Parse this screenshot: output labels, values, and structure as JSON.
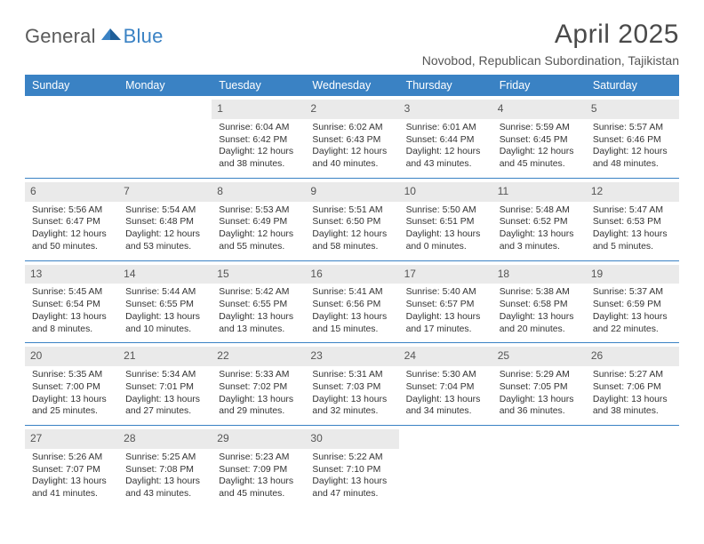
{
  "brand": {
    "word1": "General",
    "word2": "Blue",
    "accent": "#3a82c4",
    "gray": "#5a5a5a"
  },
  "title": "April 2025",
  "subtitle": "Novobod, Republican Subordination, Tajikistan",
  "colors": {
    "header_bg": "#3a82c4",
    "header_fg": "#ffffff",
    "rule": "#3a82c4",
    "daynum_bg": "#eaeaea",
    "text": "#333333"
  },
  "columns": [
    "Sunday",
    "Monday",
    "Tuesday",
    "Wednesday",
    "Thursday",
    "Friday",
    "Saturday"
  ],
  "weeks": [
    [
      null,
      null,
      {
        "n": "1",
        "sr": "Sunrise: 6:04 AM",
        "ss": "Sunset: 6:42 PM",
        "dl": "Daylight: 12 hours and 38 minutes."
      },
      {
        "n": "2",
        "sr": "Sunrise: 6:02 AM",
        "ss": "Sunset: 6:43 PM",
        "dl": "Daylight: 12 hours and 40 minutes."
      },
      {
        "n": "3",
        "sr": "Sunrise: 6:01 AM",
        "ss": "Sunset: 6:44 PM",
        "dl": "Daylight: 12 hours and 43 minutes."
      },
      {
        "n": "4",
        "sr": "Sunrise: 5:59 AM",
        "ss": "Sunset: 6:45 PM",
        "dl": "Daylight: 12 hours and 45 minutes."
      },
      {
        "n": "5",
        "sr": "Sunrise: 5:57 AM",
        "ss": "Sunset: 6:46 PM",
        "dl": "Daylight: 12 hours and 48 minutes."
      }
    ],
    [
      {
        "n": "6",
        "sr": "Sunrise: 5:56 AM",
        "ss": "Sunset: 6:47 PM",
        "dl": "Daylight: 12 hours and 50 minutes."
      },
      {
        "n": "7",
        "sr": "Sunrise: 5:54 AM",
        "ss": "Sunset: 6:48 PM",
        "dl": "Daylight: 12 hours and 53 minutes."
      },
      {
        "n": "8",
        "sr": "Sunrise: 5:53 AM",
        "ss": "Sunset: 6:49 PM",
        "dl": "Daylight: 12 hours and 55 minutes."
      },
      {
        "n": "9",
        "sr": "Sunrise: 5:51 AM",
        "ss": "Sunset: 6:50 PM",
        "dl": "Daylight: 12 hours and 58 minutes."
      },
      {
        "n": "10",
        "sr": "Sunrise: 5:50 AM",
        "ss": "Sunset: 6:51 PM",
        "dl": "Daylight: 13 hours and 0 minutes."
      },
      {
        "n": "11",
        "sr": "Sunrise: 5:48 AM",
        "ss": "Sunset: 6:52 PM",
        "dl": "Daylight: 13 hours and 3 minutes."
      },
      {
        "n": "12",
        "sr": "Sunrise: 5:47 AM",
        "ss": "Sunset: 6:53 PM",
        "dl": "Daylight: 13 hours and 5 minutes."
      }
    ],
    [
      {
        "n": "13",
        "sr": "Sunrise: 5:45 AM",
        "ss": "Sunset: 6:54 PM",
        "dl": "Daylight: 13 hours and 8 minutes."
      },
      {
        "n": "14",
        "sr": "Sunrise: 5:44 AM",
        "ss": "Sunset: 6:55 PM",
        "dl": "Daylight: 13 hours and 10 minutes."
      },
      {
        "n": "15",
        "sr": "Sunrise: 5:42 AM",
        "ss": "Sunset: 6:55 PM",
        "dl": "Daylight: 13 hours and 13 minutes."
      },
      {
        "n": "16",
        "sr": "Sunrise: 5:41 AM",
        "ss": "Sunset: 6:56 PM",
        "dl": "Daylight: 13 hours and 15 minutes."
      },
      {
        "n": "17",
        "sr": "Sunrise: 5:40 AM",
        "ss": "Sunset: 6:57 PM",
        "dl": "Daylight: 13 hours and 17 minutes."
      },
      {
        "n": "18",
        "sr": "Sunrise: 5:38 AM",
        "ss": "Sunset: 6:58 PM",
        "dl": "Daylight: 13 hours and 20 minutes."
      },
      {
        "n": "19",
        "sr": "Sunrise: 5:37 AM",
        "ss": "Sunset: 6:59 PM",
        "dl": "Daylight: 13 hours and 22 minutes."
      }
    ],
    [
      {
        "n": "20",
        "sr": "Sunrise: 5:35 AM",
        "ss": "Sunset: 7:00 PM",
        "dl": "Daylight: 13 hours and 25 minutes."
      },
      {
        "n": "21",
        "sr": "Sunrise: 5:34 AM",
        "ss": "Sunset: 7:01 PM",
        "dl": "Daylight: 13 hours and 27 minutes."
      },
      {
        "n": "22",
        "sr": "Sunrise: 5:33 AM",
        "ss": "Sunset: 7:02 PM",
        "dl": "Daylight: 13 hours and 29 minutes."
      },
      {
        "n": "23",
        "sr": "Sunrise: 5:31 AM",
        "ss": "Sunset: 7:03 PM",
        "dl": "Daylight: 13 hours and 32 minutes."
      },
      {
        "n": "24",
        "sr": "Sunrise: 5:30 AM",
        "ss": "Sunset: 7:04 PM",
        "dl": "Daylight: 13 hours and 34 minutes."
      },
      {
        "n": "25",
        "sr": "Sunrise: 5:29 AM",
        "ss": "Sunset: 7:05 PM",
        "dl": "Daylight: 13 hours and 36 minutes."
      },
      {
        "n": "26",
        "sr": "Sunrise: 5:27 AM",
        "ss": "Sunset: 7:06 PM",
        "dl": "Daylight: 13 hours and 38 minutes."
      }
    ],
    [
      {
        "n": "27",
        "sr": "Sunrise: 5:26 AM",
        "ss": "Sunset: 7:07 PM",
        "dl": "Daylight: 13 hours and 41 minutes."
      },
      {
        "n": "28",
        "sr": "Sunrise: 5:25 AM",
        "ss": "Sunset: 7:08 PM",
        "dl": "Daylight: 13 hours and 43 minutes."
      },
      {
        "n": "29",
        "sr": "Sunrise: 5:23 AM",
        "ss": "Sunset: 7:09 PM",
        "dl": "Daylight: 13 hours and 45 minutes."
      },
      {
        "n": "30",
        "sr": "Sunrise: 5:22 AM",
        "ss": "Sunset: 7:10 PM",
        "dl": "Daylight: 13 hours and 47 minutes."
      },
      null,
      null,
      null
    ]
  ]
}
